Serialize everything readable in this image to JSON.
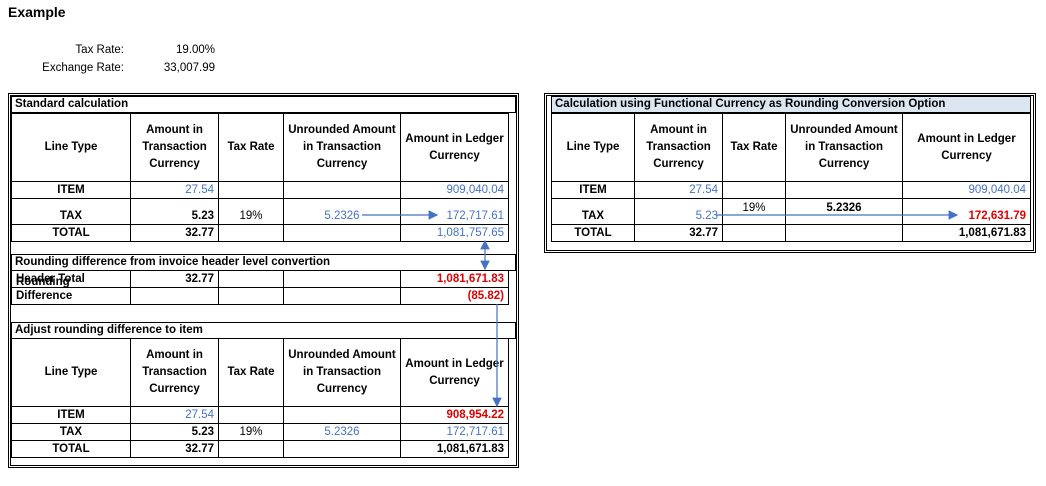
{
  "title": "Example",
  "parameters": [
    {
      "label": "Tax Rate:",
      "value": "19.00%"
    },
    {
      "label": "Exchange Rate:",
      "value": "33,007.99"
    }
  ],
  "standard_calculation": {
    "title": "Standard calculation",
    "header": [
      "Line Type",
      "Amount in Transaction Currency",
      "Tax Rate",
      "Unrounded Amount in Transaction Currency",
      "Amount in Ledger Currency"
    ],
    "rows": [
      {
        "line_type": "ITEM",
        "transaction_amount": "27.54",
        "ledger_amount": "909,040.04"
      },
      {
        "line_type": "TAX",
        "transaction_amount": "5.23",
        "tax_rate": "19%",
        "unrounded_amount": "5.2326",
        "ledger_amount": "172,717.61"
      },
      {
        "line_type": "TOTAL",
        "transaction_amount": "32.77",
        "ledger_amount": "1,081,757.65"
      }
    ]
  },
  "rounding_difference": {
    "title": "Rounding difference from invoice header level convertion",
    "rows": [
      {
        "line_type": "Header Total",
        "transaction_amount": "32.77",
        "ledger_amount": "1,081,671.83"
      },
      {
        "line_type": "Rounding Difference",
        "ledger_amount": "(85.82)"
      }
    ]
  },
  "adjusted": {
    "title": "Adjust rounding difference to item",
    "header": [
      "Line Type",
      "Amount in Transaction Currency",
      "Tax Rate",
      "Unrounded Amount in Transaction Currency",
      "Amount in Ledger Currency"
    ],
    "rows": [
      {
        "line_type": "ITEM",
        "transaction_amount": "27.54",
        "ledger_amount": "908,954.22"
      },
      {
        "line_type": "TAX",
        "transaction_amount": "5.23",
        "tax_rate": "19%",
        "unrounded_amount": "5.2326",
        "ledger_amount": "172,717.61"
      },
      {
        "line_type": "TOTAL",
        "transaction_amount": "32.77",
        "ledger_amount": "1,081,671.83"
      }
    ]
  },
  "functional_currency": {
    "title": "Calculation using Functional Currency as Rounding Conversion Option",
    "header": [
      "Line Type",
      "Amount in Transaction Currency",
      "Tax Rate",
      "Unrounded Amount in Transaction Currency",
      "Amount in Ledger Currency"
    ],
    "rows": [
      {
        "line_type": "ITEM",
        "transaction_amount": "27.54",
        "ledger_amount": "909,040.04"
      },
      {
        "line_type": "TAX",
        "transaction_amount": "5.23",
        "tax_rate": "19%",
        "unrounded_amount": "5.2326",
        "ledger_amount": "172,631.79"
      },
      {
        "line_type": "TOTAL",
        "transaction_amount": "32.77",
        "ledger_amount": "1,081,671.83"
      }
    ]
  }
}
